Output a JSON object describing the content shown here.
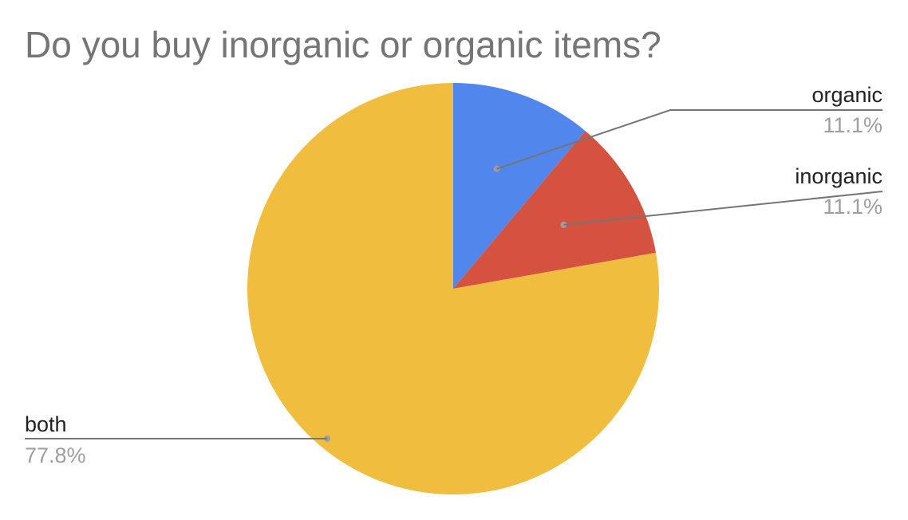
{
  "chart_data": {
    "type": "pie",
    "title": "Do you buy inorganic or organic items?",
    "slices": [
      {
        "label": "organic",
        "value": 11.1,
        "percent_label": "11.1%",
        "color": "#5186ec"
      },
      {
        "label": "inorganic",
        "value": 11.1,
        "percent_label": "11.1%",
        "color": "#d65240"
      },
      {
        "label": "both",
        "value": 77.8,
        "percent_label": "77.8%",
        "color": "#f0bd3e"
      }
    ],
    "legend": "none",
    "label_style": "outside-with-leader-lines"
  }
}
